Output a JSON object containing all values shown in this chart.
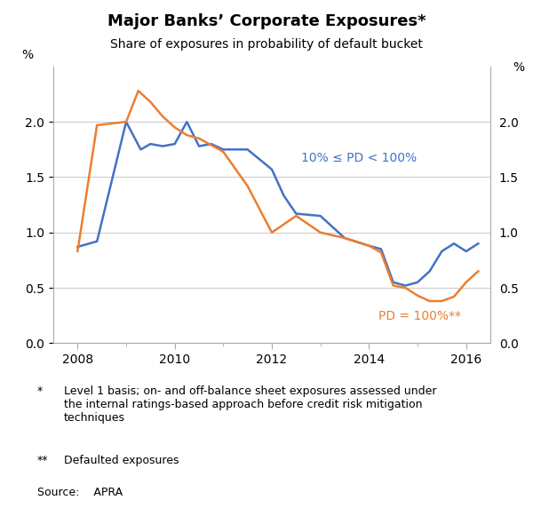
{
  "title": "Major Banks’ Corporate Exposures*",
  "subtitle": "Share of exposures in probability of default bucket",
  "ylabel_left": "%",
  "ylabel_right": "%",
  "ylim": [
    0.0,
    2.5
  ],
  "yticks": [
    0.0,
    0.5,
    1.0,
    1.5,
    2.0
  ],
  "xlim": [
    2007.5,
    2016.5
  ],
  "xticks_major": [
    2008,
    2010,
    2012,
    2014,
    2016
  ],
  "xticks_minor": [
    2009,
    2011,
    2013,
    2015
  ],
  "blue_color": "#4472C4",
  "orange_color": "#ED7D31",
  "footnote1_star": "*",
  "footnote1_text": "Level 1 basis; on- and off-balance sheet exposures assessed under\nthe internal ratings-based approach before credit risk mitigation\ntechniques",
  "footnote2_star": "**",
  "footnote2_text": "Defaulted exposures",
  "source": "Source:    APRA",
  "label_blue": "10% ≤ PD < 100%",
  "label_orange": "PD = 100%**",
  "blue_x": [
    2008.0,
    2008.4,
    2009.0,
    2009.3,
    2009.5,
    2009.75,
    2010.0,
    2010.25,
    2010.5,
    2010.75,
    2011.0,
    2011.5,
    2012.0,
    2012.25,
    2012.5,
    2013.0,
    2013.5,
    2014.0,
    2014.25,
    2014.5,
    2014.75,
    2015.0,
    2015.25,
    2015.5,
    2015.75,
    2016.0,
    2016.25
  ],
  "blue_y": [
    0.87,
    0.92,
    2.0,
    1.75,
    1.8,
    1.78,
    1.8,
    2.0,
    1.78,
    1.8,
    1.75,
    1.75,
    1.57,
    1.33,
    1.17,
    1.15,
    0.95,
    0.88,
    0.85,
    0.55,
    0.52,
    0.55,
    0.65,
    0.83,
    0.9,
    0.83,
    0.9
  ],
  "orange_x": [
    2008.0,
    2008.4,
    2009.0,
    2009.25,
    2009.5,
    2009.75,
    2010.0,
    2010.25,
    2010.5,
    2011.0,
    2011.5,
    2012.0,
    2012.5,
    2013.0,
    2013.5,
    2014.0,
    2014.25,
    2014.5,
    2014.75,
    2015.0,
    2015.25,
    2015.5,
    2015.75,
    2016.0,
    2016.25
  ],
  "orange_y": [
    0.83,
    1.97,
    2.0,
    2.28,
    2.18,
    2.05,
    1.95,
    1.88,
    1.85,
    1.73,
    1.42,
    1.0,
    1.15,
    1.0,
    0.95,
    0.88,
    0.82,
    0.52,
    0.5,
    0.43,
    0.38,
    0.38,
    0.42,
    0.55,
    0.65
  ]
}
